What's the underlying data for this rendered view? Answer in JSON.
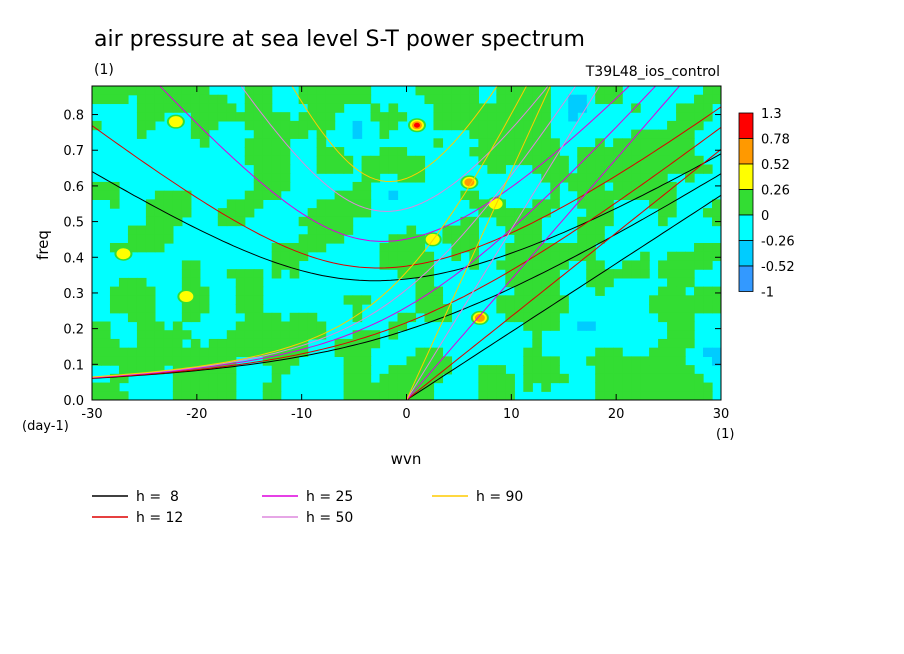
{
  "chart_data": {
    "type": "heatmap",
    "title": "air pressure at sea level S-T power spectrum",
    "subtitle_left": "(1)",
    "subtitle_right": "T39L48_ios_control",
    "xlabel": "wvn",
    "ylabel": "freq",
    "x_unit": "(1)",
    "y_unit": "(day-1)",
    "xlim": [
      -30,
      30
    ],
    "ylim": [
      0,
      0.88
    ],
    "x_ticks": [
      "-30",
      "-20",
      "-10",
      "0",
      "10",
      "20",
      "30"
    ],
    "x_tick_values": [
      -30,
      -20,
      -10,
      0,
      10,
      20,
      30
    ],
    "y_ticks": [
      "0.0",
      "0.1",
      "0.2",
      "0.3",
      "0.4",
      "0.5",
      "0.6",
      "0.7",
      "0.8"
    ],
    "y_tick_values": [
      0,
      0.1,
      0.2,
      0.3,
      0.4,
      0.5,
      0.6,
      0.7,
      0.8
    ],
    "colorbar": {
      "labels": [
        "1.3",
        "0.78",
        "0.52",
        "0.26",
        "0",
        "-0.26",
        "-0.52",
        "-1"
      ],
      "colors": [
        "#ff0000",
        "#ff9900",
        "#ffff00",
        "#33dd33",
        "#00ffff",
        "#00ccff",
        "#3399ff",
        "#1144ff"
      ]
    },
    "hotspots": [
      {
        "wvn": 1,
        "freq": 0.77,
        "level": "1.3"
      },
      {
        "wvn": 7,
        "freq": 0.23,
        "level": "0.78"
      },
      {
        "wvn": 6,
        "freq": 0.61,
        "level": "0.78"
      },
      {
        "wvn": 2.5,
        "freq": 0.45,
        "level": "0.52"
      },
      {
        "wvn": 8.5,
        "freq": 0.55,
        "level": "0.52"
      },
      {
        "wvn": -27,
        "freq": 0.41,
        "level": "0.52"
      },
      {
        "wvn": -21,
        "freq": 0.29,
        "level": "0.52"
      },
      {
        "wvn": -22,
        "freq": 0.78,
        "level": "0.52"
      }
    ],
    "series": [
      {
        "name": "h =  8",
        "h": 8,
        "color": "#000000"
      },
      {
        "name": "h = 12",
        "h": 12,
        "color": "#dd0000"
      },
      {
        "name": "h = 25",
        "h": 25,
        "color": "#dd00dd"
      },
      {
        "name": "h = 50",
        "h": 50,
        "color": "#dd88dd"
      },
      {
        "name": "h = 90",
        "h": 90,
        "color": "#ffcc00"
      }
    ]
  }
}
